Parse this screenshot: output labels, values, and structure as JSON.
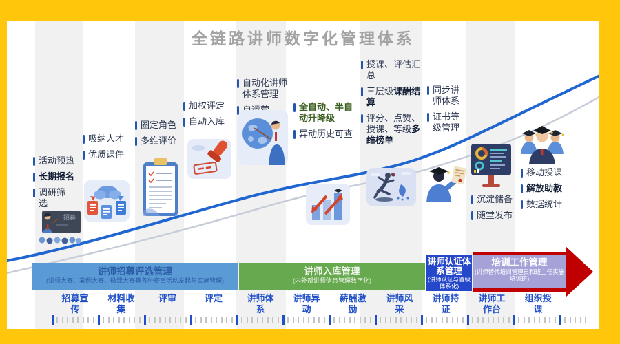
{
  "title": "全链路讲师数字化管理体系",
  "columns": [
    {
      "items": [
        {
          "text": "活动预热"
        },
        {
          "text": "长期报名"
        },
        {
          "text": "调研筛选"
        }
      ],
      "board_text": "招募",
      "illustration": "recruiting-board"
    },
    {
      "items": [
        {
          "text": "吸纳人才"
        },
        {
          "text": "优质课件"
        }
      ],
      "illustration": "cloud-documents"
    },
    {
      "items": [
        {
          "text": "圈定角色"
        },
        {
          "text": "多维评价"
        }
      ],
      "illustration": "evaluation-clipboard"
    },
    {
      "items": [
        {
          "text": "加权评定"
        },
        {
          "text": "自动入库"
        }
      ],
      "illustration": "approval-stamp"
    },
    {
      "items": [
        {
          "text": "自动化讲师体系管理"
        },
        {
          "text": "自运营"
        }
      ],
      "illustration": "lecturer-globe"
    },
    {
      "items": [
        {
          "text": "全自动、半自动升降级"
        },
        {
          "text": "异动历史可查"
        }
      ],
      "illustration": "trend-chart"
    },
    {
      "items": [
        {
          "text": "授课、评估汇总"
        },
        {
          "pre": "三层级",
          "bold": "课酬结算"
        },
        {
          "pre": "评分、点赞、授课、等级",
          "bold": "多维榜单"
        }
      ],
      "illustration": "dancer"
    },
    {
      "items": [
        {
          "text": "同步讲师体系"
        },
        {
          "text": "证书等级管理"
        }
      ],
      "illustration": "certificate-holder"
    },
    {
      "items": [
        {
          "text": "沉淀储备"
        },
        {
          "text": "随堂发布"
        }
      ],
      "illustration": "dashboard-monitor"
    },
    {
      "items": [
        {
          "text": "移动授课"
        },
        {
          "text": "解放助教"
        },
        {
          "text": "数据统计"
        }
      ],
      "illustration": "graduates-group"
    }
  ],
  "bands": [
    {
      "title": "讲师招募评选管理",
      "subtitle": "(讲师大赛、案例大赛、微课大赛等各种赛事活动发起与实施管理)",
      "color": "#5B9BD5"
    },
    {
      "title": "讲师入库管理",
      "subtitle": "(内外部讲师信息管理数字化)",
      "color": "#66A94F"
    },
    {
      "title": "讲师认证体系管理",
      "subtitle": "(讲师认证与晋级体系化)",
      "color": "#2547C9"
    },
    {
      "title": "培训工作管理",
      "subtitle": "(讲师替代培训管理员和班主任实施培训班)",
      "color": "#A5A2D7"
    }
  ],
  "timeline": {
    "labels": [
      "招募宣传",
      "材料收集",
      "评审",
      "评定",
      "讲师体系",
      "讲师异动",
      "薪酬激励",
      "讲师风采",
      "讲师持证",
      "讲师工作台",
      "组织授课"
    ]
  },
  "colors": {
    "frame": "#FFC60B",
    "curve": "#2066D0",
    "curve_shadow": "#C7CDD8",
    "band_arrow": "#C00000",
    "timeline_label": "#2050C8",
    "bullet": "#2456B0",
    "highlight_green": "#3A5F1F",
    "title_gray": "#A3A3A3"
  }
}
